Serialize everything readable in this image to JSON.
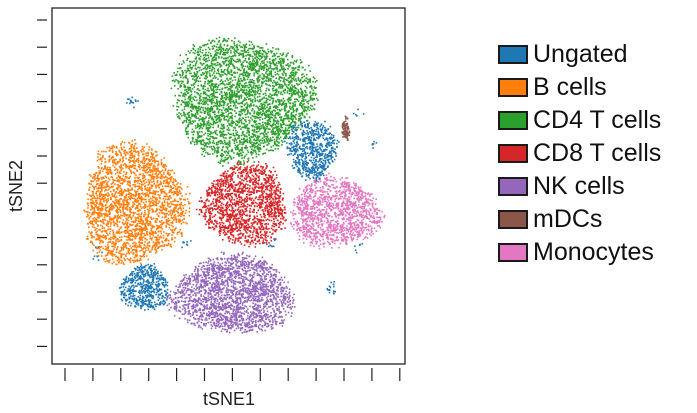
{
  "chart_data": {
    "type": "scatter",
    "title": "",
    "xlabel": "tSNE1",
    "ylabel": "tSNE2",
    "grid": false,
    "legend_position": "right",
    "tick_labels": false,
    "series": [
      {
        "name": "Ungated",
        "color": "#1f77b4"
      },
      {
        "name": "B cells",
        "color": "#ff7f0e"
      },
      {
        "name": "CD4 T cells",
        "color": "#2ca02c"
      },
      {
        "name": "CD8 T cells",
        "color": "#d62728"
      },
      {
        "name": "NK cells",
        "color": "#9467bd"
      },
      {
        "name": "mDCs",
        "color": "#8c564b"
      },
      {
        "name": "Monocytes",
        "color": "#e377c2"
      }
    ]
  }
}
